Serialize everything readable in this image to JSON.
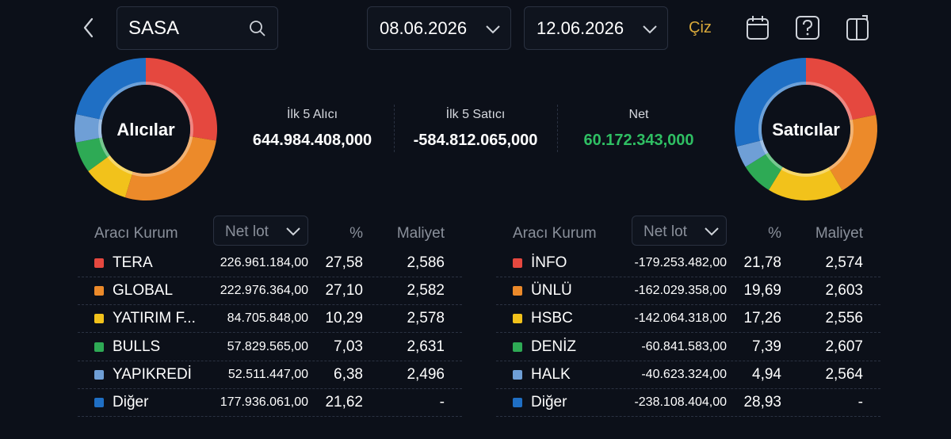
{
  "header": {
    "symbol": "SASA",
    "start_date": "08.06.2026",
    "end_date": "12.06.2026",
    "draw_button": "Çiz"
  },
  "donuts": [
    "Alıcılar",
    "Satıcılar"
  ],
  "summary": [
    {
      "label": "İlk 5 Alıcı",
      "value": "644.984.408,000"
    },
    {
      "label": "İlk 5 Satıcı",
      "value": "-584.812.065,000"
    },
    {
      "label": "Net",
      "value": "60.172.343,000"
    }
  ],
  "colors": [
    "#e5483f",
    "#ec8a2a",
    "#f2c21b",
    "#2eaa55",
    "#6f9fd6",
    "#1f6fc4"
  ],
  "tables": [
    {
      "columns": [
        "Aracı Kurum",
        "Net lot",
        "%",
        "Maliyet"
      ],
      "rows": [
        [
          "TERA",
          "226.961.184,00",
          "27,58",
          "2,586"
        ],
        [
          "GLOBAL",
          "222.976.364,00",
          "27,10",
          "2,582"
        ],
        [
          "YATIRIM F...",
          "84.705.848,00",
          "10,29",
          "2,578"
        ],
        [
          "BULLS",
          "57.829.565,00",
          "7,03",
          "2,631"
        ],
        [
          "YAPIKREDİ",
          "52.511.447,00",
          "6,38",
          "2,496"
        ],
        [
          "Diğer",
          "177.936.061,00",
          "21,62",
          "-"
        ]
      ]
    },
    {
      "columns": [
        "Aracı Kurum",
        "Net lot",
        "%",
        "Maliyet"
      ],
      "rows": [
        [
          "İNFO",
          "-179.253.482,00",
          "21,78",
          "2,574"
        ],
        [
          "ÜNLÜ",
          "-162.029.358,00",
          "19,69",
          "2,603"
        ],
        [
          "HSBC",
          "-142.064.318,00",
          "17,26",
          "2,556"
        ],
        [
          "DENİZ",
          "-60.841.583,00",
          "7,39",
          "2,607"
        ],
        [
          "HALK",
          "-40.623.324,00",
          "4,94",
          "2,564"
        ],
        [
          "Diğer",
          "-238.108.404,00",
          "28,93",
          "-"
        ]
      ]
    }
  ]
}
